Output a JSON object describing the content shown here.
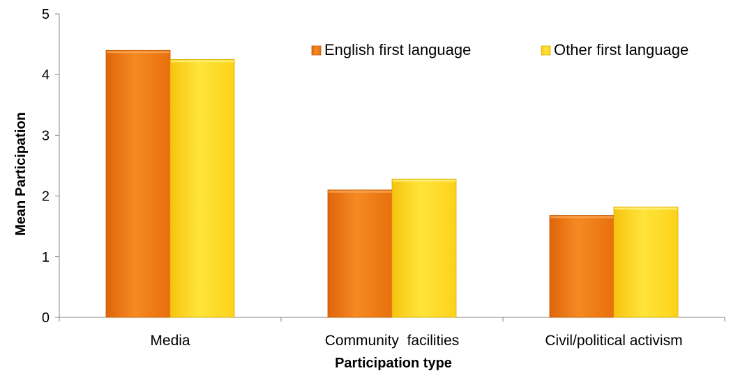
{
  "chart_data": {
    "type": "bar",
    "title": "",
    "xlabel": "Participation type",
    "ylabel": "Mean Participation",
    "categories": [
      "Media",
      "Community  facilities",
      "Civil/political activism"
    ],
    "series": [
      {
        "name": "English first language",
        "values": [
          4.4,
          2.1,
          1.68
        ],
        "color": "#f07a12"
      },
      {
        "name": "Other first language",
        "values": [
          4.25,
          2.28,
          1.82
        ],
        "color": "#ffd21c"
      }
    ],
    "ylim": [
      0,
      5
    ],
    "yticks": [
      "0",
      "1",
      "2",
      "3",
      "4",
      "5"
    ],
    "grid": false,
    "legend_position": "top-right"
  }
}
